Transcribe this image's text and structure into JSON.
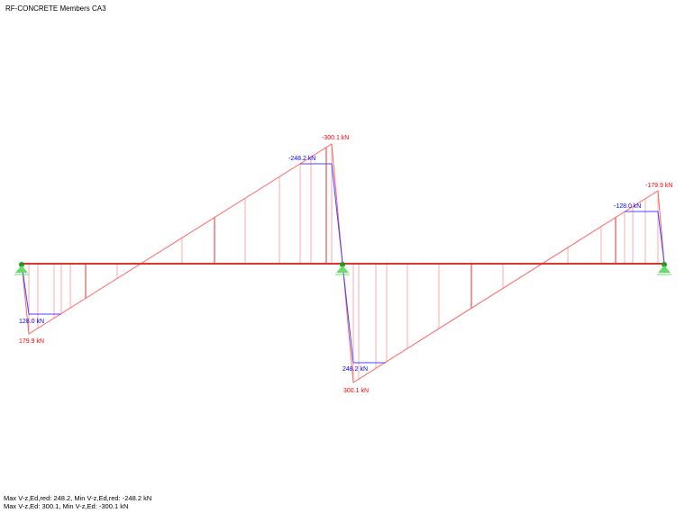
{
  "title": "RF-CONCRETE Members CA3",
  "labels": {
    "left_max": "179.9 kN",
    "left_red": "128.0 kN",
    "mid_min": "-300.1 kN",
    "mid_min_red": "-248.2 kN",
    "mid_max": "300.1 kN",
    "mid_max_red": "248.2 kN",
    "right_min": "-179.9 kN",
    "right_min_red": "-128.0 kN"
  },
  "footer": {
    "line1": "Max V-z,Ed,red: 248.2, Min V-z,Ed,red: -248.2 kN",
    "line2": "Max V-z,Ed: 300.1, Min V-z,Ed: -300.1 kN"
  },
  "colors": {
    "shear": "#ff0000",
    "reduced": "#0000ff",
    "support": "#33cc33"
  }
}
